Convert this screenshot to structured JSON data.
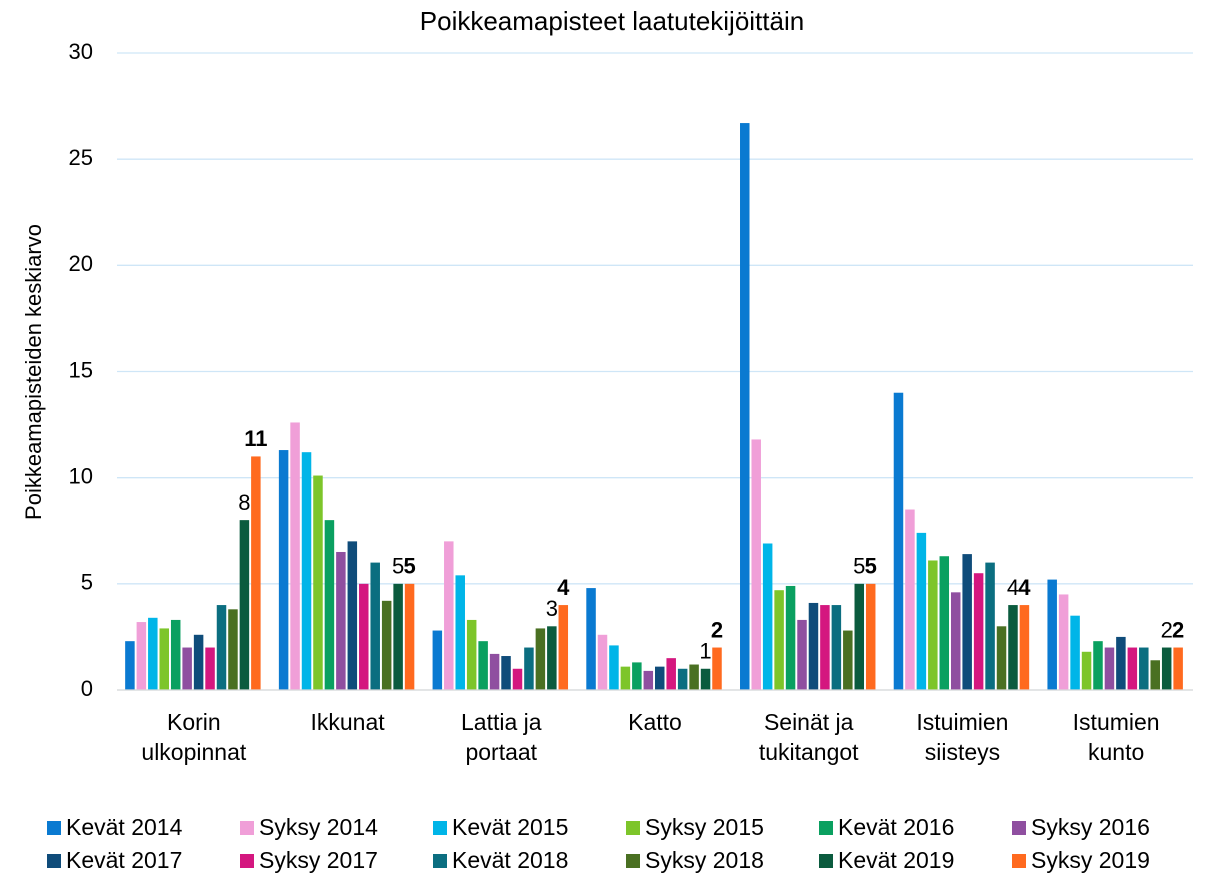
{
  "chart_data": {
    "type": "bar",
    "title": "Poikkeamapisteet laatutekijöittäin",
    "y_label": "Poikkeamapisteiden keskiarvo",
    "categories": [
      "Korin\nulkopinnat",
      "Ikkunat",
      "Lattia ja\nportaat",
      "Katto",
      "Seinät ja\ntukitangot",
      "Istuimien\nsiisteys",
      "Istumien\nkunto"
    ],
    "ylim": [
      0,
      30
    ],
    "yticks": [
      0,
      5,
      10,
      15,
      20,
      25,
      30
    ],
    "grid": true,
    "legend": "bottom",
    "series": [
      {
        "name": "Kevät 2014",
        "color": "#0a7ad1",
        "values": [
          2.3,
          11.3,
          2.8,
          4.8,
          26.7,
          14.0,
          5.2
        ]
      },
      {
        "name": "Syksy 2014",
        "color": "#f09fd8",
        "values": [
          3.2,
          12.6,
          7.0,
          2.6,
          11.8,
          8.5,
          4.5
        ]
      },
      {
        "name": "Kevät 2015",
        "color": "#00b5e8",
        "values": [
          3.4,
          11.2,
          5.4,
          2.1,
          6.9,
          7.4,
          3.5
        ]
      },
      {
        "name": "Syksy 2015",
        "color": "#7dc52a",
        "values": [
          2.9,
          10.1,
          3.3,
          1.1,
          4.7,
          6.1,
          1.8
        ]
      },
      {
        "name": "Kevät 2016",
        "color": "#0aa060",
        "values": [
          3.3,
          8.0,
          2.3,
          1.3,
          4.9,
          6.3,
          2.3
        ]
      },
      {
        "name": "Syksy 2016",
        "color": "#8f4fa0",
        "values": [
          2.0,
          6.5,
          1.7,
          0.9,
          3.3,
          4.6,
          2.0
        ]
      },
      {
        "name": "Kevät 2017",
        "color": "#0f4c7a",
        "values": [
          2.6,
          7.0,
          1.6,
          1.1,
          4.1,
          6.4,
          2.5
        ]
      },
      {
        "name": "Syksy 2017",
        "color": "#d4177f",
        "values": [
          2.0,
          5.0,
          1.0,
          1.5,
          4.0,
          5.5,
          2.0
        ]
      },
      {
        "name": "Kevät 2018",
        "color": "#0b6e80",
        "values": [
          4.0,
          6.0,
          2.0,
          1.0,
          4.0,
          6.0,
          2.0
        ]
      },
      {
        "name": "Syksy 2018",
        "color": "#4a7022",
        "values": [
          3.8,
          4.2,
          2.9,
          1.2,
          2.8,
          3.0,
          1.4
        ]
      },
      {
        "name": "Kevät 2019",
        "color": "#0b5b3e",
        "show_labels": true,
        "values": [
          8,
          5,
          3,
          1,
          5,
          4,
          2
        ]
      },
      {
        "name": "Syksy 2019",
        "color": "#ff6a1f",
        "show_labels": true,
        "label_bold": true,
        "values": [
          11,
          5,
          4,
          2,
          5,
          4,
          2
        ]
      }
    ]
  }
}
